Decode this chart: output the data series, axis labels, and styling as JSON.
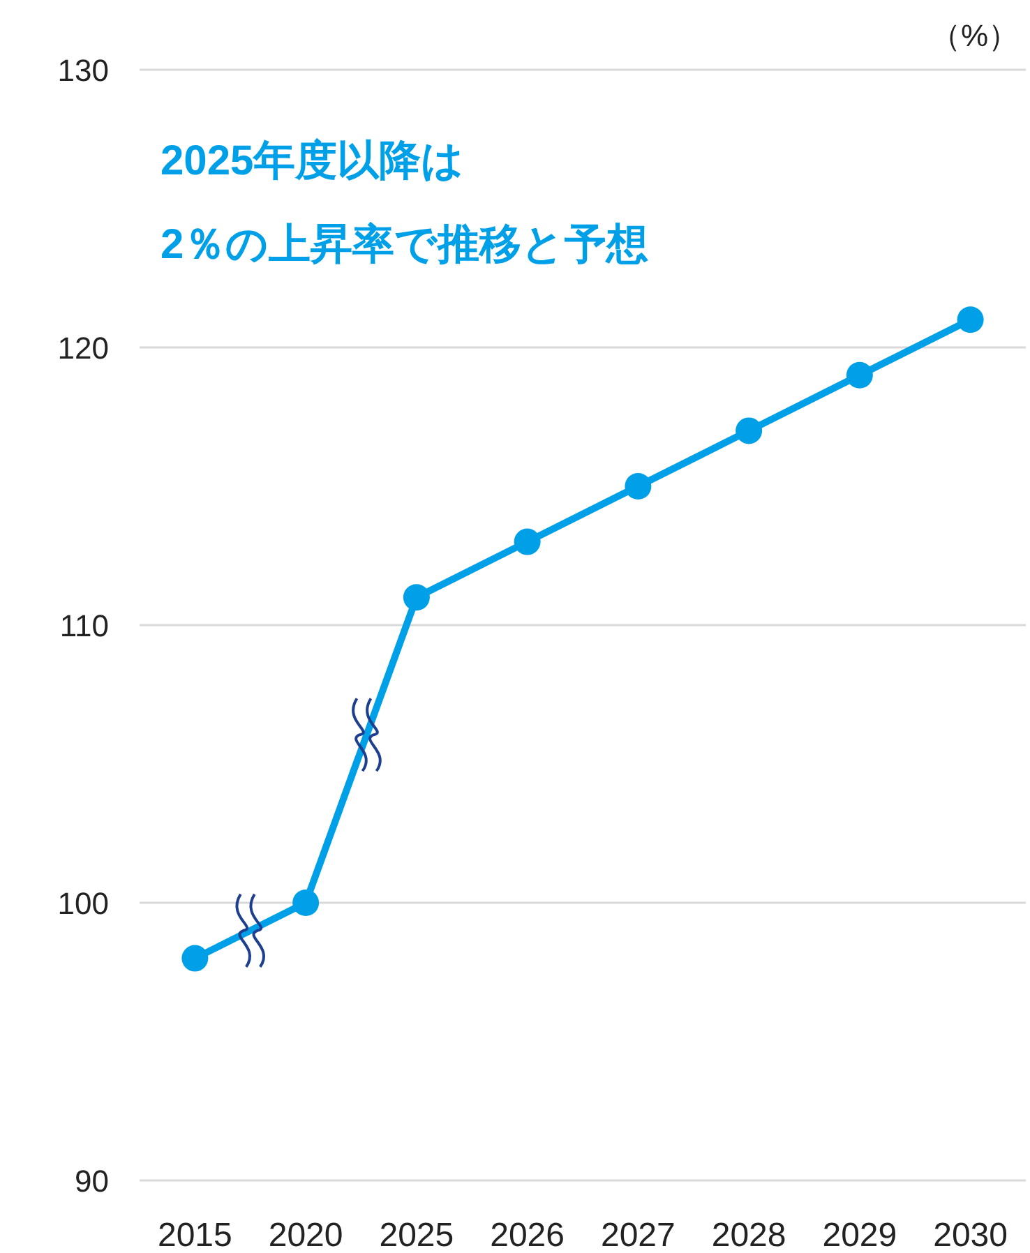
{
  "chart_data": {
    "type": "line",
    "ylabel": "（%）",
    "annotations": [
      "2025年度以降は\n2％の上昇率で推移と予想"
    ],
    "categories": [
      "2015",
      "2020",
      "2025",
      "2026",
      "2027",
      "2028",
      "2029",
      "2030"
    ],
    "series": [
      {
        "color": "#00a0e9",
        "values": [
          98,
          100,
          111,
          113,
          115,
          117,
          119,
          121
        ]
      }
    ],
    "ylim": [
      90,
      130
    ],
    "yticks": [
      90,
      100,
      110,
      120,
      130
    ],
    "grid": "y",
    "marker": "circle",
    "line_style": "solid"
  }
}
